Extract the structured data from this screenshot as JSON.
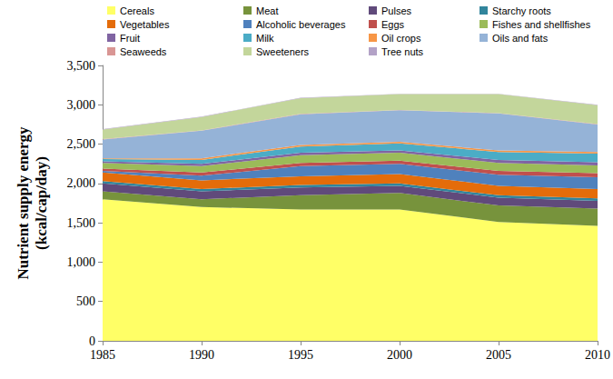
{
  "chart_data": {
    "type": "area",
    "stacked": true,
    "grid": false,
    "legend": "top",
    "y_label": "Nutrient supply energy\n(kcal/cap/day)",
    "categories": [
      "1985",
      "1990",
      "1995",
      "2000",
      "2005",
      "2010"
    ],
    "ylim": [
      0,
      3500
    ],
    "yticks": [
      0,
      500,
      {
        "value": 1000,
        "label": "1,000"
      },
      {
        "value": 1500,
        "label": "1,500"
      },
      {
        "value": 2000,
        "label": "2,000"
      },
      {
        "value": 2500,
        "label": "2,500"
      },
      {
        "value": 3000,
        "label": "3,000"
      },
      {
        "value": 3500,
        "label": "3,500"
      }
    ],
    "series": [
      {
        "name": "Cereals",
        "color": "#FFFF66",
        "values": [
          1800,
          1700,
          1670,
          1670,
          1510,
          1460
        ]
      },
      {
        "name": "Meat",
        "color": "#77933C",
        "values": [
          100,
          100,
          180,
          210,
          210,
          220
        ]
      },
      {
        "name": "Pulses",
        "color": "#604A7B",
        "values": [
          100,
          100,
          100,
          90,
          100,
          100
        ]
      },
      {
        "name": "Starchy roots",
        "color": "#31859C",
        "values": [
          30,
          30,
          30,
          30,
          30,
          30
        ]
      },
      {
        "name": "Vegetables",
        "color": "#E46C0A",
        "values": [
          110,
          110,
          110,
          120,
          120,
          120
        ]
      },
      {
        "name": "Alcoholic beverages",
        "color": "#4F81BD",
        "values": [
          20,
          60,
          130,
          130,
          140,
          150
        ]
      },
      {
        "name": "Eggs",
        "color": "#C0504D",
        "values": [
          30,
          40,
          40,
          40,
          50,
          50
        ]
      },
      {
        "name": "Fishes and shellfishes",
        "color": "#9BBB59",
        "values": [
          70,
          80,
          100,
          100,
          100,
          100
        ]
      },
      {
        "name": "Fruit",
        "color": "#8064A2",
        "values": [
          20,
          30,
          30,
          30,
          40,
          40
        ]
      },
      {
        "name": "Milk",
        "color": "#4BACC6",
        "values": [
          30,
          50,
          80,
          90,
          100,
          110
        ]
      },
      {
        "name": "Oil crops",
        "color": "#F79646",
        "values": [
          10,
          20,
          20,
          20,
          20,
          20
        ]
      },
      {
        "name": "Oils and fats",
        "color": "#95B3D7",
        "values": [
          240,
          350,
          390,
          400,
          470,
          350
        ]
      },
      {
        "name": "Seaweeds",
        "color": "#D99694",
        "values": [
          5,
          5,
          5,
          5,
          5,
          5
        ]
      },
      {
        "name": "Sweeteners",
        "color": "#C3D69B",
        "values": [
          120,
          170,
          200,
          200,
          240,
          240
        ]
      },
      {
        "name": "Tree nuts",
        "color": "#B3A2C7",
        "values": [
          5,
          5,
          5,
          5,
          5,
          5
        ]
      }
    ]
  }
}
